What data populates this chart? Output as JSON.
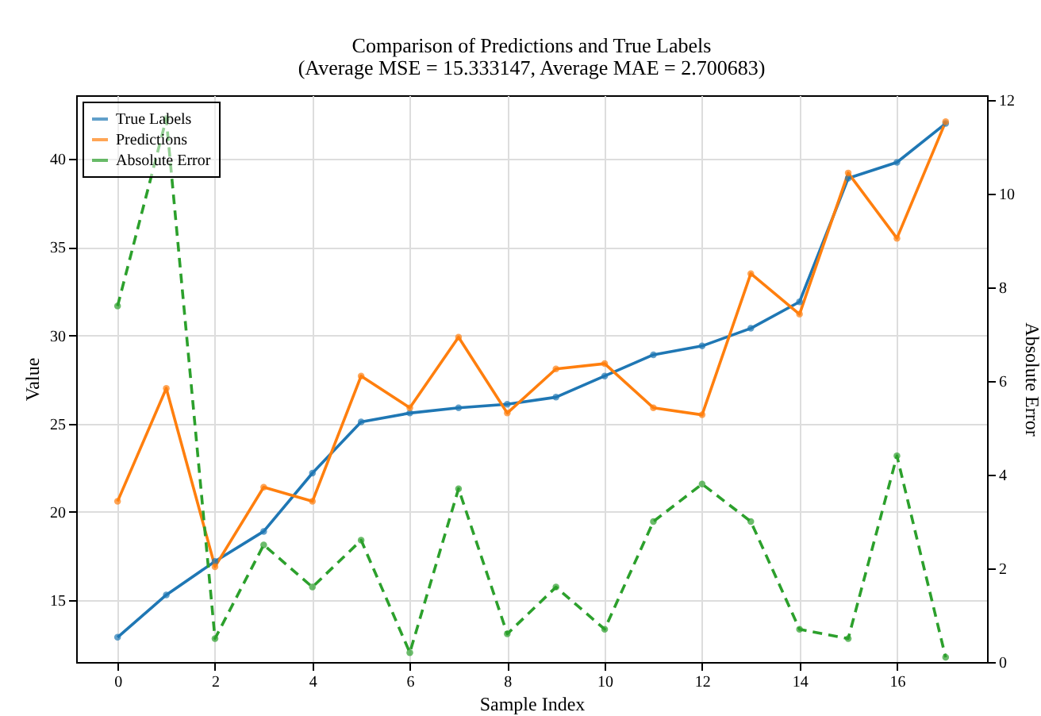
{
  "chart_data": {
    "type": "line",
    "title": "Comparison of Predictions and True Labels",
    "subtitle": "(Average MSE = 15.333147, Average MAE = 2.700683)",
    "xlabel": "Sample Index",
    "ylabel": "Value",
    "y2label": "Absolute Error",
    "x": [
      0,
      1,
      2,
      3,
      4,
      5,
      6,
      7,
      8,
      9,
      10,
      11,
      12,
      13,
      14,
      15,
      16,
      17
    ],
    "series": [
      {
        "name": "True Labels",
        "color": "#1f77b4",
        "line_style": "solid",
        "values": [
          12.9,
          15.3,
          17.2,
          18.9,
          22.2,
          25.1,
          25.6,
          25.9,
          26.1,
          26.5,
          27.7,
          28.9,
          29.4,
          30.4,
          31.9,
          38.9,
          39.8,
          42.0
        ]
      },
      {
        "name": "Predictions",
        "color": "#ff7f0e",
        "line_style": "solid",
        "values": [
          20.6,
          27.0,
          16.9,
          21.4,
          20.6,
          27.7,
          25.9,
          29.9,
          25.6,
          28.1,
          28.4,
          25.9,
          25.5,
          33.5,
          31.2,
          39.2,
          35.5,
          42.1
        ]
      },
      {
        "name": "Absolute Error",
        "color": "#2ca02c",
        "line_style": "dashed",
        "axis": "y2",
        "values": [
          7.6,
          11.6,
          0.5,
          2.5,
          1.6,
          2.6,
          0.2,
          3.7,
          0.6,
          1.6,
          0.7,
          3.0,
          3.8,
          3.0,
          0.7,
          0.5,
          4.4,
          0.1
        ]
      }
    ],
    "xlim": [
      -0.85,
      17.85
    ],
    "xticks": [
      0,
      2,
      4,
      6,
      8,
      10,
      12,
      14,
      16
    ],
    "ylim": [
      11.5,
      43.6
    ],
    "yticks": [
      15,
      20,
      25,
      30,
      35,
      40
    ],
    "y2lim": [
      0,
      12.1
    ],
    "y2ticks": [
      0,
      2,
      4,
      6,
      8,
      10,
      12
    ],
    "grid": true,
    "legend": "top left",
    "marker": "circle"
  }
}
